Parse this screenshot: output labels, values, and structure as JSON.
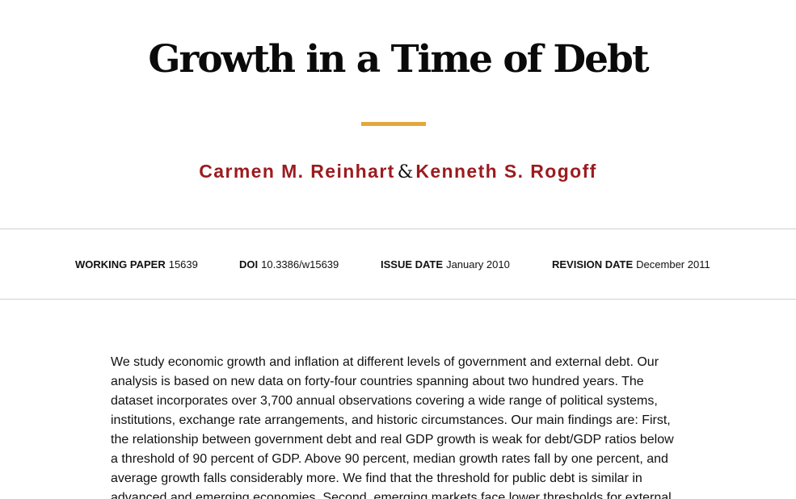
{
  "title": "Growth in a Time of Debt",
  "authors": {
    "first": "Carmen M. Reinhart",
    "separator": "&",
    "second": "Kenneth S. Rogoff"
  },
  "meta": {
    "working_paper": {
      "label": "WORKING PAPER",
      "value": "15639"
    },
    "doi": {
      "label": "DOI",
      "value": "10.3386/w15639"
    },
    "issue_date": {
      "label": "ISSUE DATE",
      "value": "January 2010"
    },
    "revision_date": {
      "label": "REVISION DATE",
      "value": "December 2011"
    }
  },
  "colors": {
    "accent": "#e2a83e",
    "author": "#9b1b1f"
  },
  "abstract": {
    "lines": [
      "We study economic growth and inflation at different levels of government and external debt. Our",
      "analysis is based on new data on forty-four countries spanning about two hundred years. The",
      "dataset incorporates over 3,700 annual observations covering a wide range of political systems,",
      "institutions, exchange rate arrangements, and historic circumstances. Our main findings are: First,",
      "the relationship between government debt and real GDP growth is weak for debt/GDP ratios below",
      "a threshold of 90 percent of GDP. Above 90 percent, median growth rates fall by one percent, and",
      "average growth falls considerably more. We find that the threshold for public debt is similar in",
      "advanced and emerging economies. Second, emerging markets face lower thresholds for external"
    ]
  }
}
